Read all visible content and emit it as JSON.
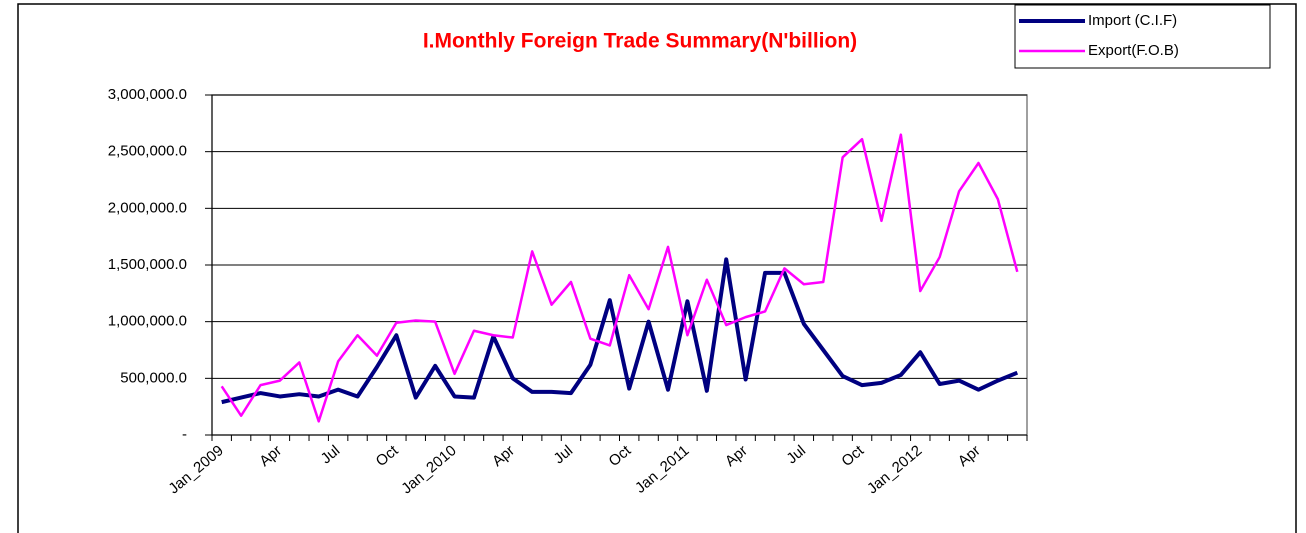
{
  "chart_data": {
    "type": "line",
    "title": "I.Monthly Foreign Trade Summary(N'billion)",
    "categories": [
      "Jan_2009",
      null,
      null,
      "Apr",
      null,
      null,
      "Jul",
      null,
      null,
      "Oct",
      null,
      null,
      "Jan_2010",
      null,
      null,
      "Apr",
      null,
      null,
      "Jul",
      null,
      null,
      "Oct",
      null,
      null,
      "Jan_2011",
      null,
      null,
      "Apr",
      null,
      null,
      "Jul",
      null,
      null,
      "Oct",
      null,
      null,
      "Jan_2012",
      null,
      null,
      "Apr",
      null,
      null
    ],
    "series": [
      {
        "name": "Import (C.I.F)",
        "color": "#000080",
        "values": [
          290000,
          330000,
          370000,
          340000,
          360000,
          340000,
          400000,
          340000,
          600000,
          880000,
          330000,
          610000,
          340000,
          330000,
          870000,
          500000,
          380000,
          380000,
          370000,
          620000,
          1190000,
          410000,
          1000000,
          400000,
          1180000,
          390000,
          1550000,
          490000,
          1430000,
          1430000,
          980000,
          750000,
          520000,
          440000,
          460000,
          530000,
          730000,
          450000,
          480000,
          400000,
          480000,
          550000
        ]
      },
      {
        "name": "Export(F.O.B)",
        "color": "#ff00ff",
        "values": [
          430000,
          170000,
          440000,
          480000,
          640000,
          120000,
          650000,
          880000,
          700000,
          990000,
          1010000,
          1000000,
          540000,
          920000,
          880000,
          860000,
          1620000,
          1150000,
          1350000,
          850000,
          790000,
          1410000,
          1110000,
          1660000,
          880000,
          1370000,
          970000,
          1040000,
          1090000,
          1470000,
          1330000,
          1350000,
          2450000,
          2610000,
          1890000,
          2650000,
          1270000,
          1570000,
          2150000,
          2400000,
          2080000,
          1440000
        ]
      }
    ],
    "ylim": [
      0,
      3000000
    ],
    "yticks": [
      {
        "value": 0,
        "label": "-"
      },
      {
        "value": 500000,
        "label": "500,000.0"
      },
      {
        "value": 1000000,
        "label": "1,000,000.0"
      },
      {
        "value": 1500000,
        "label": "1,500,000.0"
      },
      {
        "value": 2000000,
        "label": "2,000,000.0"
      },
      {
        "value": 2500000,
        "label": "2,500,000.0"
      },
      {
        "value": 3000000,
        "label": "3,000,000.0"
      }
    ],
    "grid": true,
    "legend": "top-right"
  }
}
